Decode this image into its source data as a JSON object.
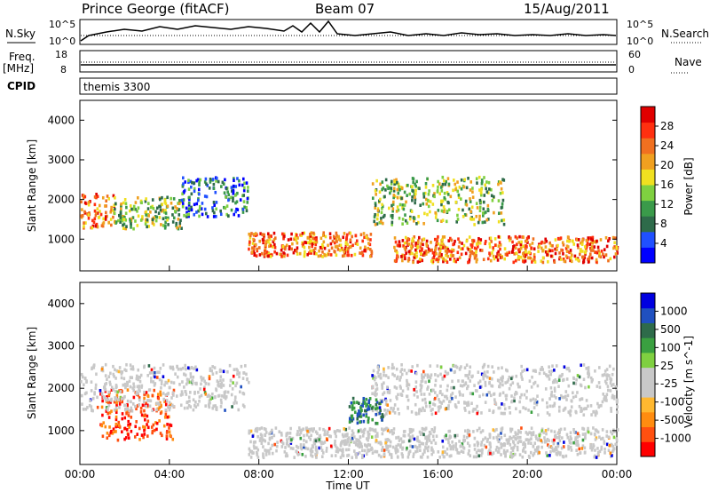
{
  "header": {
    "station": "Prince George (fitACF)",
    "beam": "Beam 07",
    "date": "15/Aug/2011"
  },
  "top_panels": {
    "nsky_label": "N.Sky",
    "nsky_ticks": [
      "10^5",
      "10^0"
    ],
    "nsearch_label": "N.Search",
    "nsearch_ticks": [
      "10^5",
      "10^0"
    ],
    "freq_label": "Freq.",
    "freq_unit": "[MHz]",
    "freq_ticks": [
      "18",
      "8"
    ],
    "nave_label": "Nave",
    "nave_ticks": [
      "60",
      "0"
    ],
    "cpid_label": "CPID",
    "cpid_value": "themis 3300"
  },
  "chart_data": [
    {
      "type": "heatmap",
      "name": "power",
      "ylabel": "Slant Range [km]",
      "xlabel": "Time UT",
      "xlim": [
        0,
        24
      ],
      "ylim": [
        200,
        4500
      ],
      "x_tick_labels": [
        "00:00",
        "04:00",
        "08:00",
        "12:00",
        "16:00",
        "20:00",
        "00:00"
      ],
      "y_ticks": [
        1000,
        2000,
        3000,
        4000
      ],
      "colorbar": {
        "label": "Power [dB]",
        "ticks": [
          "28",
          "24",
          "20",
          "16",
          "12",
          "8",
          "4"
        ],
        "colors": [
          "#0000ff",
          "#2050ff",
          "#2e6b4a",
          "#3a9a4a",
          "#7fd040",
          "#f0e020",
          "#f0a020",
          "#f07020",
          "#ff3010",
          "#e00000"
        ]
      },
      "regions": [
        {
          "t0": 0.0,
          "t1": 1.5,
          "r0": 1300,
          "r1": 2200,
          "level": "high"
        },
        {
          "t0": 1.5,
          "t1": 4.5,
          "r0": 1300,
          "r1": 2100,
          "level": "mid"
        },
        {
          "t0": 4.5,
          "t1": 7.5,
          "r0": 1600,
          "r1": 2600,
          "level": "low"
        },
        {
          "t0": 7.5,
          "t1": 13.0,
          "r0": 600,
          "r1": 1200,
          "level": "high"
        },
        {
          "t0": 13.0,
          "t1": 19.0,
          "r0": 1400,
          "r1": 2600,
          "level": "mid"
        },
        {
          "t0": 14.0,
          "t1": 24.0,
          "r0": 450,
          "r1": 1100,
          "level": "high"
        }
      ]
    },
    {
      "type": "heatmap",
      "name": "velocity",
      "ylabel": "Slant Range [km]",
      "xlabel": "Time UT",
      "xlim": [
        0,
        24
      ],
      "ylim": [
        200,
        4500
      ],
      "x_tick_labels": [
        "00:00",
        "04:00",
        "08:00",
        "12:00",
        "16:00",
        "20:00",
        "00:00"
      ],
      "y_ticks": [
        1000,
        2000,
        3000,
        4000
      ],
      "colorbar": {
        "label": "Velocity [m s^-1]",
        "ticks": [
          "1000",
          "500",
          "100",
          "25",
          "-25",
          "-100",
          "-500",
          "-1000"
        ],
        "colors": [
          "#ff0000",
          "#ff5010",
          "#ff8c10",
          "#ffb830",
          "#c8c8c8",
          "#c8c8c8",
          "#7fd040",
          "#3aa040",
          "#2e6b4a",
          "#2050c0",
          "#0000e0"
        ]
      },
      "regions": [
        {
          "t0": 0.8,
          "t1": 4.2,
          "r0": 800,
          "r1": 2000,
          "level": "neg"
        },
        {
          "t0": 0.0,
          "t1": 7.5,
          "r0": 1500,
          "r1": 2600,
          "level": "zero"
        },
        {
          "t0": 7.5,
          "t1": 24.0,
          "r0": 400,
          "r1": 1100,
          "level": "zero"
        },
        {
          "t0": 13.0,
          "t1": 24.0,
          "r0": 1400,
          "r1": 2600,
          "level": "zero"
        },
        {
          "t0": 12.0,
          "t1": 13.5,
          "r0": 1200,
          "r1": 1800,
          "level": "pos"
        }
      ]
    }
  ]
}
